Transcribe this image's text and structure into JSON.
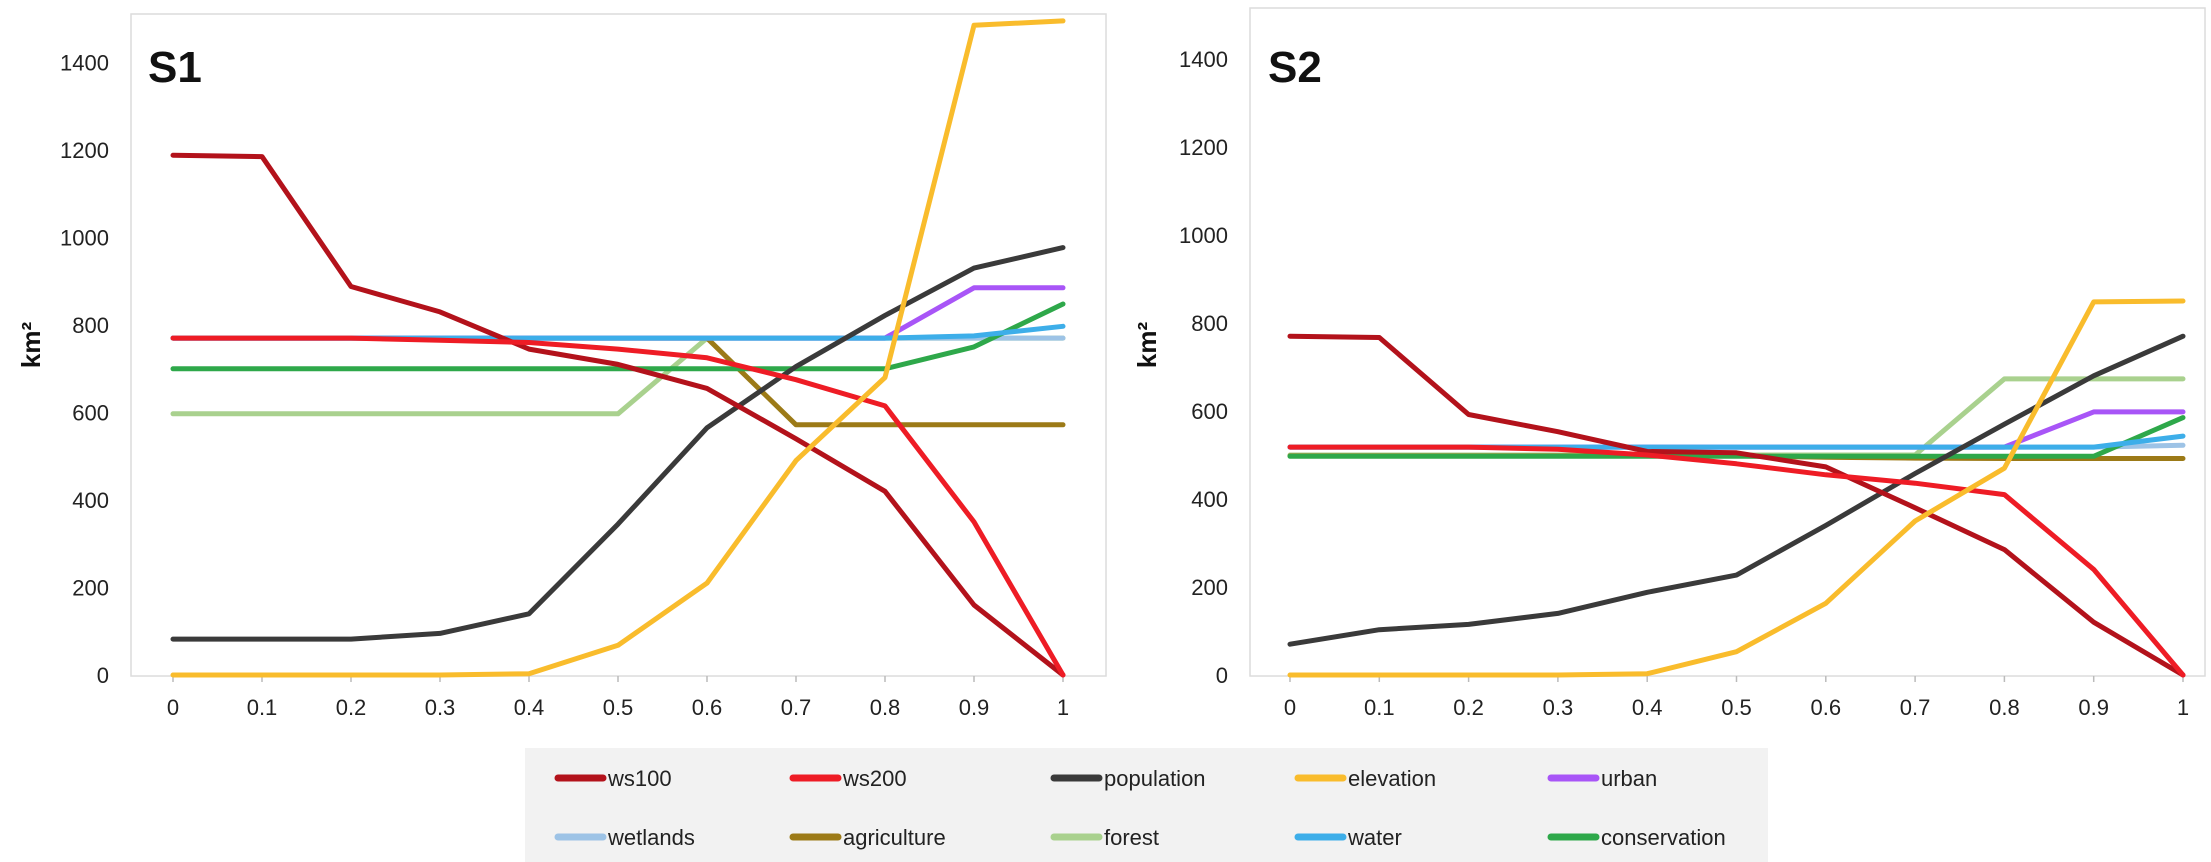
{
  "chart_data": [
    {
      "type": "line",
      "title": "S1",
      "ylabel": "km²",
      "xlabel": "",
      "ylim": [
        0,
        1500
      ],
      "yticks": [
        0,
        200,
        400,
        600,
        800,
        1000,
        1200,
        1400
      ],
      "x": [
        0,
        0.1,
        0.2,
        0.3,
        0.4,
        0.5,
        0.6,
        0.7,
        0.8,
        0.9,
        1
      ],
      "xtick_labels": [
        "0",
        "0.1",
        "0.2",
        "0.3",
        "0.4",
        "0.5",
        "0.6",
        "0.7",
        "0.8",
        "0.9",
        "1"
      ],
      "grid": false,
      "series": [
        {
          "name": "forest",
          "color": "#a9d18e",
          "values": [
            597,
            597,
            597,
            597,
            597,
            597,
            770,
            770,
            770,
            770,
            770
          ]
        },
        {
          "name": "agriculture",
          "color": "#9c7a17",
          "values": [
            770,
            770,
            770,
            770,
            770,
            770,
            770,
            572,
            572,
            572,
            572
          ]
        },
        {
          "name": "wetlands",
          "color": "#9dc3e6",
          "values": [
            770,
            770,
            770,
            770,
            770,
            770,
            770,
            770,
            770,
            770,
            770
          ]
        },
        {
          "name": "urban",
          "color": "#a855f7",
          "values": [
            770,
            770,
            770,
            770,
            770,
            770,
            770,
            770,
            770,
            885,
            885
          ]
        },
        {
          "name": "conservation",
          "color": "#2ea84a",
          "values": [
            700,
            700,
            700,
            700,
            700,
            700,
            700,
            700,
            700,
            750,
            848
          ]
        },
        {
          "name": "water",
          "color": "#3daee9",
          "values": [
            770,
            770,
            770,
            770,
            770,
            770,
            770,
            770,
            770,
            775,
            797
          ]
        },
        {
          "name": "population",
          "color": "#3a3a3a",
          "values": [
            82,
            82,
            82,
            95,
            140,
            345,
            565,
            705,
            822,
            930,
            977
          ]
        },
        {
          "name": "ws100",
          "color": "#b3121b",
          "values": [
            1188,
            1185,
            888,
            830,
            745,
            710,
            655,
            540,
            420,
            160,
            0
          ]
        },
        {
          "name": "ws200",
          "color": "#ee1c25",
          "values": [
            770,
            770,
            770,
            765,
            760,
            745,
            725,
            675,
            615,
            350,
            0
          ]
        },
        {
          "name": "elevation",
          "color": "#f9bc2c",
          "values": [
            0,
            0,
            0,
            0,
            3,
            68,
            210,
            490,
            680,
            1485,
            1495
          ]
        }
      ]
    },
    {
      "type": "line",
      "title": "S2",
      "ylabel": "km²",
      "xlabel": "",
      "ylim": [
        0,
        1500
      ],
      "yticks": [
        0,
        200,
        400,
        600,
        800,
        1000,
        1200,
        1400
      ],
      "x": [
        0,
        0.1,
        0.2,
        0.3,
        0.4,
        0.5,
        0.6,
        0.7,
        0.8,
        0.9,
        1
      ],
      "xtick_labels": [
        "0",
        "0.1",
        "0.2",
        "0.3",
        "0.4",
        "0.5",
        "0.6",
        "0.7",
        "0.8",
        "0.9",
        "1"
      ],
      "grid": false,
      "series": [
        {
          "name": "forest",
          "color": "#a9d18e",
          "values": [
            500,
            500,
            500,
            500,
            500,
            500,
            500,
            500,
            673,
            673,
            673
          ]
        },
        {
          "name": "agriculture",
          "color": "#9c7a17",
          "values": [
            498,
            498,
            498,
            498,
            498,
            498,
            495,
            493,
            492,
            492,
            492
          ]
        },
        {
          "name": "wetlands",
          "color": "#9dc3e6",
          "values": [
            518,
            518,
            518,
            518,
            518,
            518,
            518,
            518,
            518,
            518,
            522
          ]
        },
        {
          "name": "urban",
          "color": "#a855f7",
          "values": [
            518,
            518,
            518,
            518,
            518,
            518,
            518,
            518,
            518,
            598,
            598
          ]
        },
        {
          "name": "conservation",
          "color": "#2ea84a",
          "values": [
            497,
            497,
            497,
            497,
            497,
            497,
            497,
            497,
            497,
            497,
            585
          ]
        },
        {
          "name": "water",
          "color": "#3daee9",
          "values": [
            518,
            518,
            518,
            518,
            518,
            518,
            518,
            518,
            518,
            518,
            543
          ]
        },
        {
          "name": "population",
          "color": "#3a3a3a",
          "values": [
            70,
            103,
            115,
            140,
            188,
            227,
            340,
            458,
            570,
            680,
            770
          ]
        },
        {
          "name": "ws100",
          "color": "#b3121b",
          "values": [
            770,
            767,
            592,
            553,
            508,
            505,
            473,
            380,
            285,
            120,
            0
          ]
        },
        {
          "name": "ws200",
          "color": "#ee1c25",
          "values": [
            518,
            518,
            518,
            513,
            500,
            480,
            455,
            436,
            410,
            240,
            0
          ]
        },
        {
          "name": "elevation",
          "color": "#f9bc2c",
          "values": [
            0,
            0,
            0,
            0,
            3,
            53,
            163,
            350,
            470,
            848,
            850
          ]
        }
      ]
    }
  ],
  "legend": {
    "placement": "bottom",
    "entries": [
      {
        "label": "ws100",
        "color": "#b3121b"
      },
      {
        "label": "ws200",
        "color": "#ee1c25"
      },
      {
        "label": "population",
        "color": "#3a3a3a"
      },
      {
        "label": "elevation",
        "color": "#f9bc2c"
      },
      {
        "label": "urban",
        "color": "#a855f7"
      },
      {
        "label": "wetlands",
        "color": "#9dc3e6"
      },
      {
        "label": "agriculture",
        "color": "#9c7a17"
      },
      {
        "label": "forest",
        "color": "#a9d18e"
      },
      {
        "label": "water",
        "color": "#3daee9"
      },
      {
        "label": "conservation",
        "color": "#2ea84a"
      }
    ]
  }
}
